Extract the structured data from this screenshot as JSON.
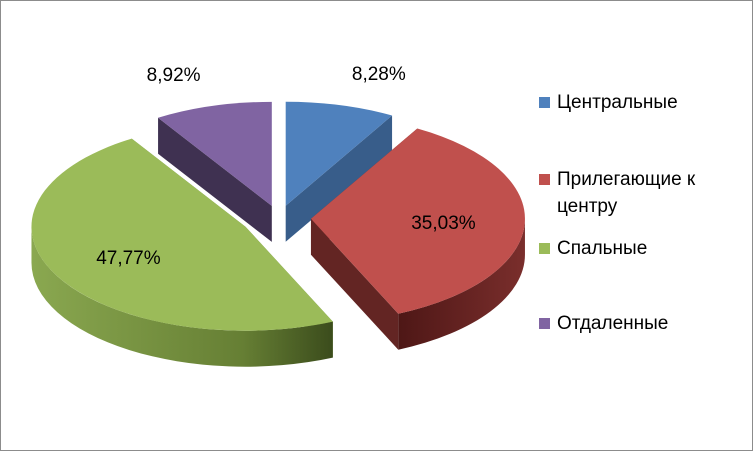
{
  "chart_data": {
    "type": "pie",
    "title": "",
    "categories": [
      "Центральные",
      "Прилегающие к центру",
      "Спальные",
      "Отдаленные"
    ],
    "values": [
      8.28,
      35.03,
      47.77,
      8.92
    ],
    "data_labels": [
      "8,28%",
      "35,03%",
      "47,77%",
      "8,92%"
    ],
    "colors": [
      "#4f81bd",
      "#c0504d",
      "#9bbb59",
      "#8064a2"
    ],
    "side_colors": [
      "#385d8a",
      "#632523",
      "#6b8a3a",
      "#3f3151"
    ],
    "style": "3d-exploded",
    "legend_position": "right"
  },
  "legend": {
    "items": [
      {
        "label": "Центральные",
        "color": "#4f81bd"
      },
      {
        "label": "Прилегающие к\nцентру",
        "color": "#c0504d"
      },
      {
        "label": "Спальные",
        "color": "#9bbb59"
      },
      {
        "label": "Отдаленные",
        "color": "#8064a2"
      }
    ]
  }
}
